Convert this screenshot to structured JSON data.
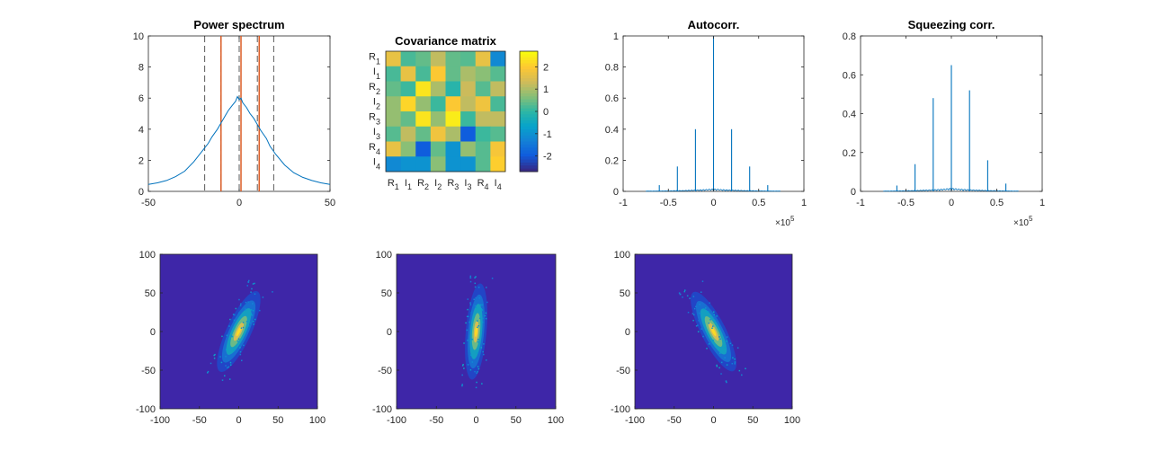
{
  "colors": {
    "trace": "#0072bd",
    "vline_dashed": "#000000",
    "vline_red": "#d95319",
    "scatter_bg": "#3e26a8"
  },
  "parula": [
    "#352a87",
    "#0f5cdd",
    "#1481d6",
    "#06a4ca",
    "#2eb7a4",
    "#87bf77",
    "#d1bb59",
    "#fec832",
    "#f9fb0e"
  ],
  "chart_data": [
    {
      "id": "power",
      "type": "line",
      "title": "Power spectrum",
      "xlim": [
        -50,
        50
      ],
      "ylim": [
        0,
        10
      ],
      "xticks": [
        -50,
        0,
        50
      ],
      "yticks": [
        0,
        2,
        4,
        6,
        8,
        10
      ],
      "series": [
        {
          "x": [
            -50,
            -45,
            -40,
            -35,
            -30,
            -25,
            -20,
            -17,
            -15,
            -12,
            -10,
            -8,
            -6,
            -4,
            -2,
            -1,
            0,
            1,
            2,
            4,
            6,
            8,
            10,
            12,
            15,
            17,
            20,
            25,
            30,
            35,
            40,
            45,
            50
          ],
          "y": [
            0.45,
            0.55,
            0.7,
            0.95,
            1.3,
            1.9,
            2.65,
            3.1,
            3.5,
            4.0,
            4.4,
            4.8,
            5.2,
            5.5,
            5.8,
            6.1,
            5.9,
            6.0,
            5.7,
            5.4,
            5.0,
            4.7,
            4.3,
            3.9,
            3.4,
            2.9,
            2.4,
            1.7,
            1.2,
            0.9,
            0.7,
            0.55,
            0.45
          ]
        }
      ],
      "vlines_dashed": [
        -19,
        -10,
        0,
        10,
        19
      ],
      "vlines_red": [
        -10,
        1,
        11
      ]
    },
    {
      "id": "cov",
      "type": "heatmap",
      "title": "Covariance matrix",
      "labels": [
        [
          "R",
          "1"
        ],
        [
          "I",
          "1"
        ],
        [
          "R",
          "2"
        ],
        [
          "I",
          "2"
        ],
        [
          "R",
          "3"
        ],
        [
          "I",
          "3"
        ],
        [
          "R",
          "4"
        ],
        [
          "I",
          "4"
        ]
      ],
      "clim": [
        -2.7,
        2.7
      ],
      "colorbar_ticks": [
        -2,
        -1,
        0,
        1,
        2
      ],
      "matrix": [
        [
          1.7,
          0.2,
          0.4,
          1.2,
          0.4,
          0.3,
          1.7,
          -1.2
        ],
        [
          0.2,
          1.7,
          0.2,
          2.0,
          0.4,
          1.0,
          0.7,
          0.3
        ],
        [
          0.4,
          0.1,
          2.4,
          1.0,
          -0.1,
          1.3,
          0.3,
          1.2
        ],
        [
          0.8,
          2.2,
          0.8,
          0.1,
          2.0,
          1.2,
          1.8,
          0.2
        ],
        [
          0.8,
          0.4,
          2.4,
          0.8,
          2.5,
          0.1,
          1.2,
          1.2
        ],
        [
          0.3,
          1.2,
          0.4,
          1.8,
          1.0,
          -2.0,
          0.1,
          0.3
        ],
        [
          1.7,
          0.7,
          -2.0,
          0.4,
          -1.0,
          0.8,
          0.3,
          1.9
        ],
        [
          -1.2,
          -1.0,
          -1.0,
          0.7,
          -1.0,
          -1.0,
          0.3,
          2.1
        ]
      ]
    },
    {
      "id": "autocorr",
      "type": "line",
      "title": "Autocorr.",
      "xlim": [
        -1,
        1
      ],
      "ylim": [
        0,
        1
      ],
      "xticks": [
        -1,
        -0.5,
        0,
        0.5,
        1
      ],
      "yticks": [
        0,
        0.2,
        0.4,
        0.6,
        0.8,
        1
      ],
      "x_exponent": "5",
      "spikes": [
        {
          "x": -0.6,
          "y": 0.04
        },
        {
          "x": -0.4,
          "y": 0.16
        },
        {
          "x": -0.2,
          "y": 0.4
        },
        {
          "x": 0,
          "y": 1.0
        },
        {
          "x": 0.2,
          "y": 0.4
        },
        {
          "x": 0.4,
          "y": 0.16
        },
        {
          "x": 0.6,
          "y": 0.04
        }
      ]
    },
    {
      "id": "squeeze",
      "type": "line",
      "title": "Squeezing corr.",
      "xlim": [
        -1,
        1
      ],
      "ylim": [
        0,
        0.8
      ],
      "xticks": [
        -1,
        -0.5,
        0,
        0.5,
        1
      ],
      "yticks": [
        0,
        0.2,
        0.4,
        0.6,
        0.8
      ],
      "x_exponent": "5",
      "spikes": [
        {
          "x": -0.6,
          "y": 0.03
        },
        {
          "x": -0.4,
          "y": 0.14
        },
        {
          "x": -0.2,
          "y": 0.48
        },
        {
          "x": 0,
          "y": 0.65
        },
        {
          "x": 0.2,
          "y": 0.52
        },
        {
          "x": 0.4,
          "y": 0.16
        },
        {
          "x": 0.6,
          "y": 0.04
        }
      ]
    },
    {
      "id": "scatter1",
      "type": "heatmap",
      "xlim": [
        -100,
        100
      ],
      "ylim": [
        -100,
        100
      ],
      "xticks": [
        -100,
        -50,
        0,
        50,
        100
      ],
      "yticks": [
        100,
        50,
        0,
        -50,
        -100
      ],
      "tilt_deg": 25,
      "spread": [
        6,
        22
      ]
    },
    {
      "id": "scatter2",
      "type": "heatmap",
      "xlim": [
        -100,
        100
      ],
      "ylim": [
        -100,
        100
      ],
      "xticks": [
        -100,
        -50,
        0,
        50,
        100
      ],
      "yticks": [
        100,
        50,
        0,
        -50,
        -100
      ],
      "tilt_deg": 5,
      "spread": [
        5,
        24
      ]
    },
    {
      "id": "scatter3",
      "type": "heatmap",
      "xlim": [
        -100,
        100
      ],
      "ylim": [
        -100,
        100
      ],
      "xticks": [
        -100,
        -50,
        0,
        50,
        100
      ],
      "yticks": [
        100,
        50,
        0,
        -50,
        -100
      ],
      "tilt_deg": -27,
      "spread": [
        6,
        22
      ]
    }
  ]
}
